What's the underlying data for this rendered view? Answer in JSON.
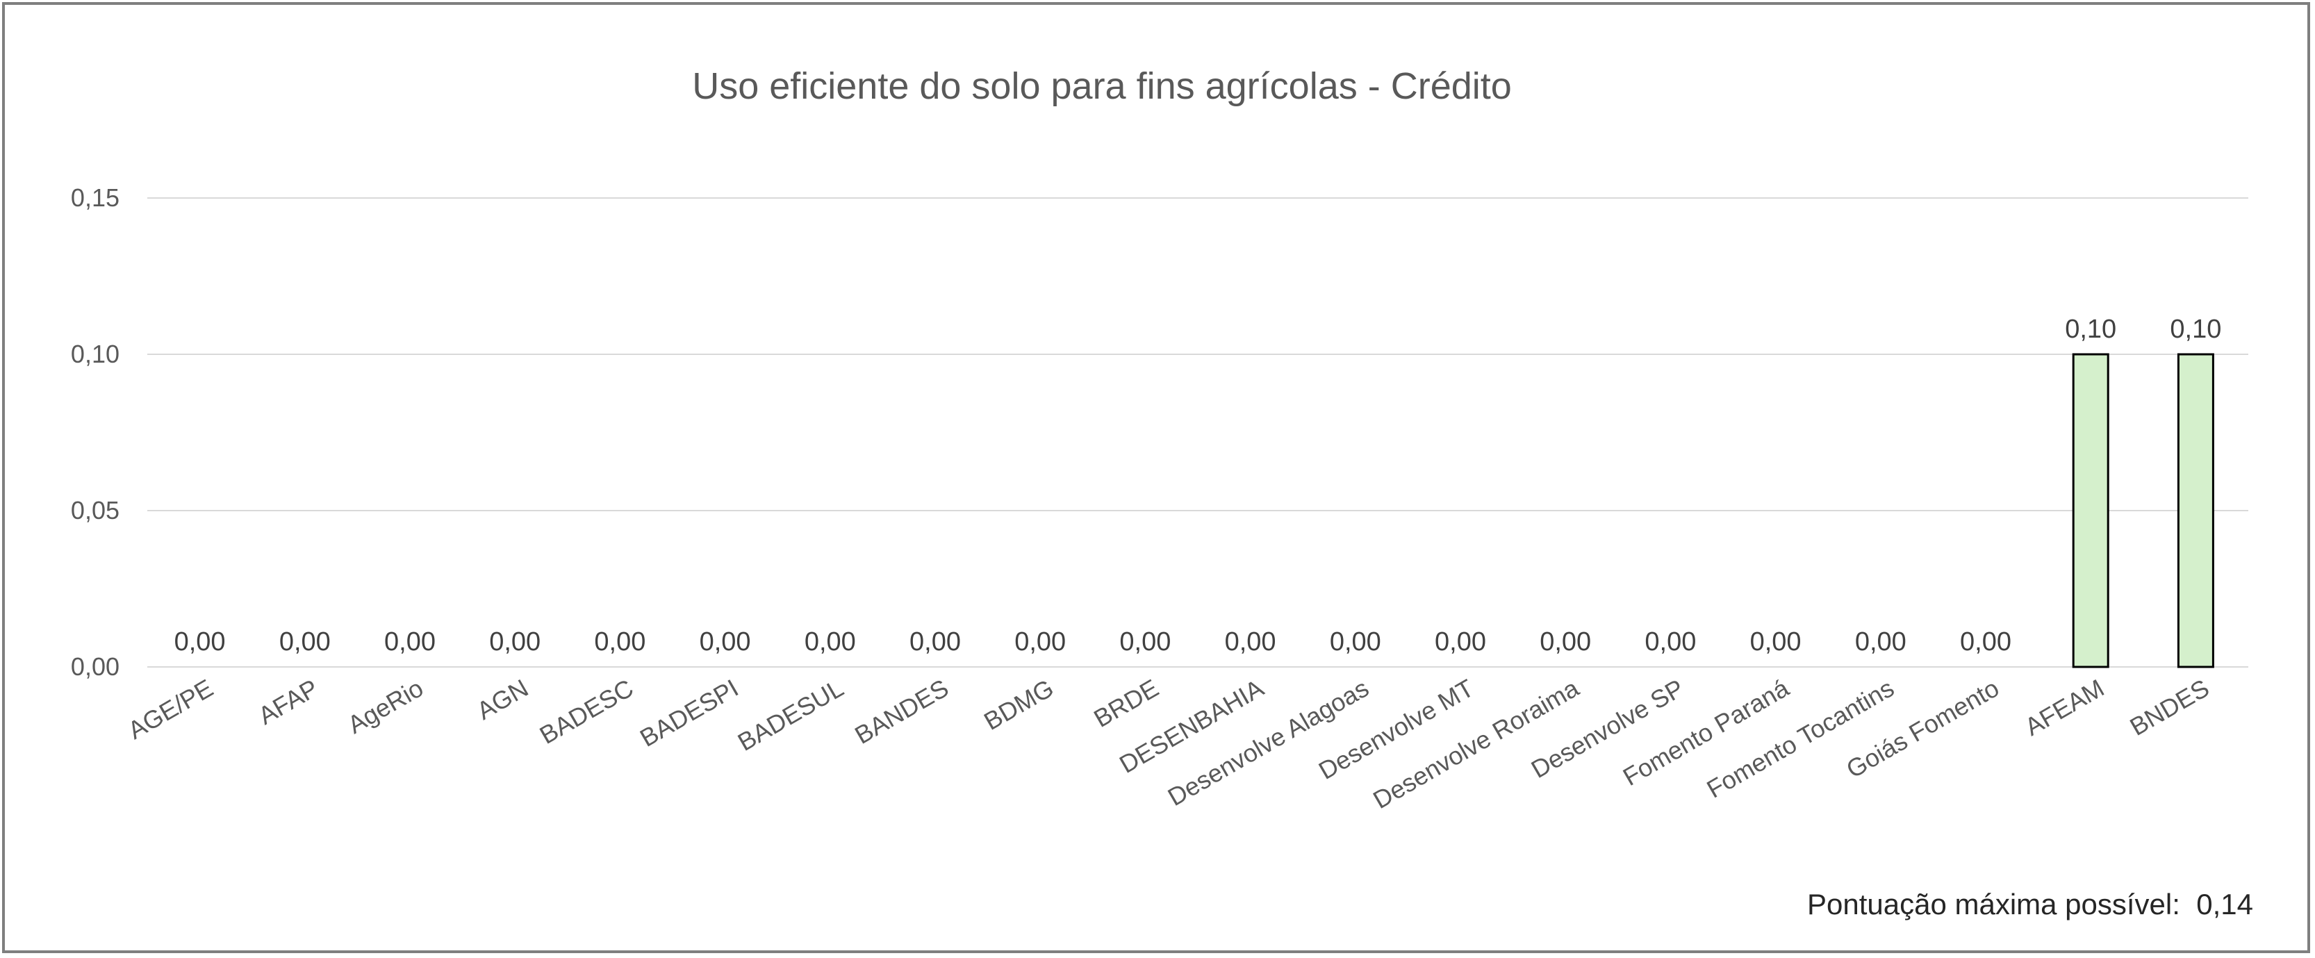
{
  "chart_data": {
    "type": "bar",
    "title": "Uso eficiente do solo para fins agrícolas - Crédito",
    "xlabel": "",
    "ylabel": "",
    "categories": [
      "AGE/PE",
      "AFAP",
      "AgeRio",
      "AGN",
      "BADESC",
      "BADESPI",
      "BADESUL",
      "BANDES",
      "BDMG",
      "BRDE",
      "DESENBAHIA",
      "Desenvolve Alagoas",
      "Desenvolve MT",
      "Desenvolve Roraima",
      "Desenvolve SP",
      "Fomento Paraná",
      "Fomento Tocantins",
      "Goiás Fomento",
      "AFEAM",
      "BNDES"
    ],
    "values": [
      0,
      0,
      0,
      0,
      0,
      0,
      0,
      0,
      0,
      0,
      0,
      0,
      0,
      0,
      0,
      0,
      0,
      0,
      0.1,
      0.1
    ],
    "data_labels": [
      "0,00",
      "0,00",
      "0,00",
      "0,00",
      "0,00",
      "0,00",
      "0,00",
      "0,00",
      "0,00",
      "0,00",
      "0,00",
      "0,00",
      "0,00",
      "0,00",
      "0,00",
      "0,00",
      "0,00",
      "0,00",
      "0,10",
      "0,10"
    ],
    "ylim": [
      0,
      0.15
    ],
    "yticks": [
      0,
      0.05,
      0.1,
      0.15
    ],
    "ytick_labels": [
      "0,00",
      "0,05",
      "0,10",
      "0,15"
    ],
    "grid": true,
    "legend": "none",
    "colors": {
      "bar_fill": "#d5f0cc",
      "bar_stroke": "#000000",
      "grid": "#d9d9d9"
    }
  },
  "footer_note": "Pontuação máxima possível:  0,14"
}
